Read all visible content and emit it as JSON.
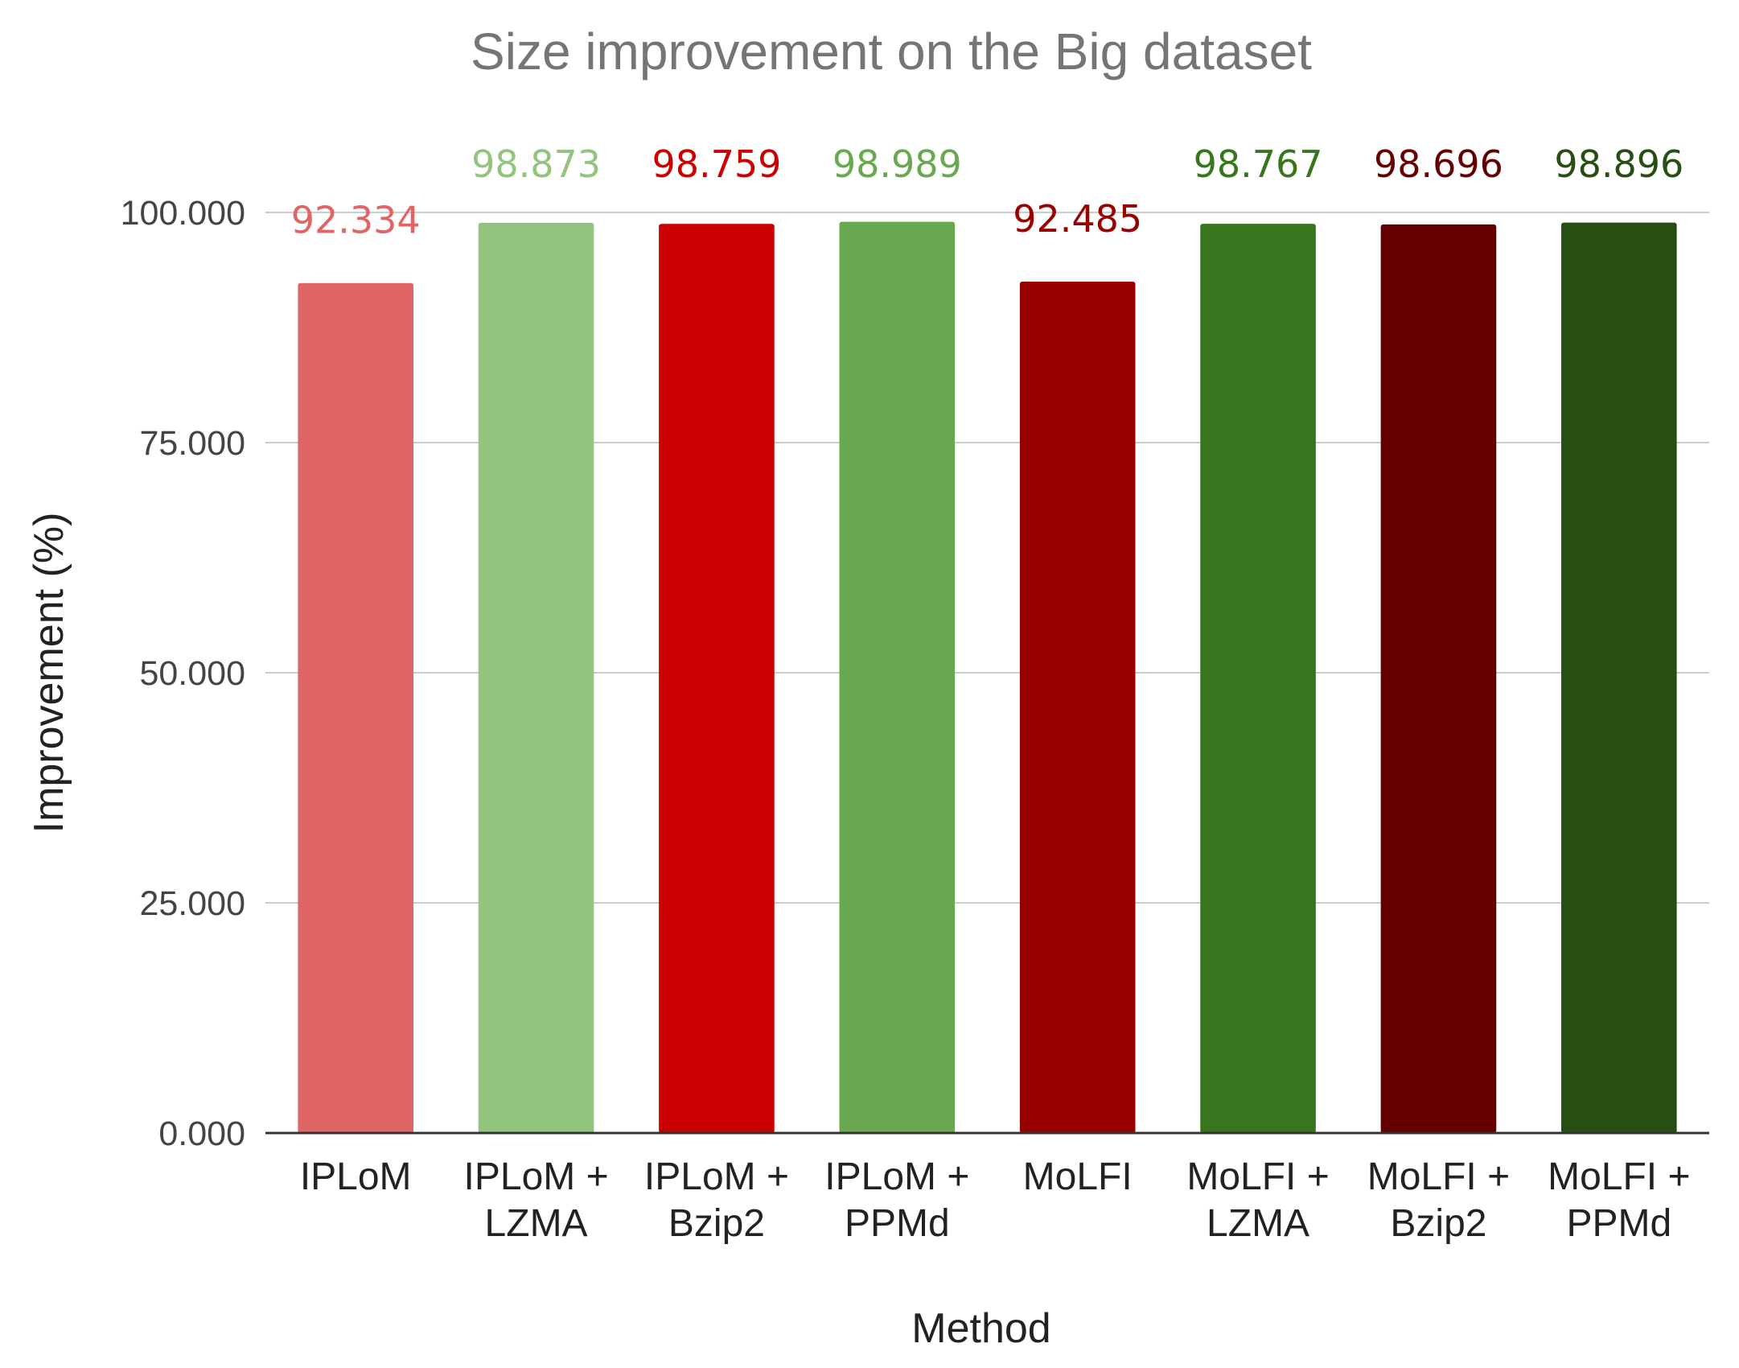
{
  "chart_data": {
    "type": "bar",
    "title": "Size improvement on the Big dataset",
    "xlabel": "Method",
    "ylabel": "Improvement (%)",
    "ylim": [
      0,
      100
    ],
    "yticks": [
      "0.000",
      "25.000",
      "50.000",
      "75.000",
      "100.000"
    ],
    "ytick_values": [
      0,
      25,
      50,
      75,
      100
    ],
    "grid": true,
    "legend": "none",
    "categories": [
      [
        "IPLoM"
      ],
      [
        "IPLoM +",
        "LZMA"
      ],
      [
        "IPLoM +",
        "Bzip2"
      ],
      [
        "IPLoM +",
        "PPMd"
      ],
      [
        "MoLFI"
      ],
      [
        "MoLFI +",
        "LZMA"
      ],
      [
        "MoLFI +",
        "Bzip2"
      ],
      [
        "MoLFI +",
        "PPMd"
      ]
    ],
    "values": [
      92.334,
      98.873,
      98.759,
      98.989,
      92.485,
      98.767,
      98.696,
      98.896
    ],
    "value_labels": [
      "92.334",
      "98.873",
      "98.759",
      "98.989",
      "92.485",
      "98.767",
      "98.696",
      "98.896"
    ],
    "colors": [
      "#e06666",
      "#93c47d",
      "#cc0000",
      "#6aa84f",
      "#990000",
      "#38761d",
      "#660000",
      "#274e13"
    ]
  }
}
